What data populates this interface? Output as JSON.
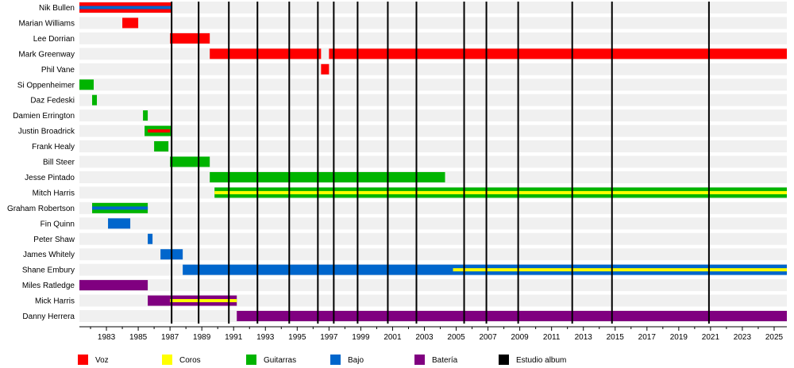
{
  "chart_data": {
    "type": "timeline",
    "title": "",
    "xlabel": "",
    "ylabel": "",
    "xlim": [
      1981.3,
      2025.8
    ],
    "x_ticks": [
      "1983",
      "1985",
      "1987",
      "1989",
      "1991",
      "1993",
      "1995",
      "1997",
      "1999",
      "2001",
      "2003",
      "2005",
      "2007",
      "2009",
      "2011",
      "2013",
      "2015",
      "2017",
      "2019",
      "2021",
      "2023",
      "2025"
    ],
    "grid": "none",
    "legend_position": "bottom",
    "roles": [
      {
        "key": "voz",
        "name": "Voz",
        "color": "#ff0000"
      },
      {
        "key": "coros",
        "name": "Coros",
        "color": "#ffff00"
      },
      {
        "key": "guitarras",
        "name": "Guitarras",
        "color": "#00b400"
      },
      {
        "key": "bajo",
        "name": "Bajo",
        "color": "#0066cc"
      },
      {
        "key": "bateria",
        "name": "Batería",
        "color": "#800080"
      },
      {
        "key": "estudio",
        "name": "Estudio album",
        "color": "#000000"
      }
    ],
    "albums": [
      1987.1,
      1988.8,
      1990.7,
      1992.5,
      1994.5,
      1996.3,
      1997.3,
      1998.8,
      2000.7,
      2002.5,
      2005.5,
      2006.9,
      2008.9,
      2012.3,
      2014.8,
      2020.9
    ],
    "members": [
      {
        "name": "Nik Bullen",
        "bars": [
          {
            "start": 1981.3,
            "end": 1987.1,
            "role": "voz"
          }
        ],
        "overlays": [
          {
            "start": 1981.3,
            "end": 1987.1,
            "role": "bajo"
          }
        ]
      },
      {
        "name": "Marian Williams",
        "bars": [
          {
            "start": 1984.0,
            "end": 1985.0,
            "role": "voz"
          }
        ]
      },
      {
        "name": "Lee Dorrian",
        "bars": [
          {
            "start": 1987.0,
            "end": 1989.5,
            "role": "voz"
          }
        ]
      },
      {
        "name": "Mark Greenway",
        "bars": [
          {
            "start": 1989.5,
            "end": 1996.5,
            "role": "voz"
          },
          {
            "start": 1997.0,
            "end": 2025.8,
            "role": "voz"
          }
        ]
      },
      {
        "name": "Phil Vane",
        "bars": [
          {
            "start": 1996.5,
            "end": 1997.0,
            "role": "voz"
          }
        ]
      },
      {
        "name": "Si Oppenheimer",
        "bars": [
          {
            "start": 1981.3,
            "end": 1982.2,
            "role": "guitarras"
          }
        ]
      },
      {
        "name": "Daz Fedeski",
        "bars": [
          {
            "start": 1982.1,
            "end": 1982.4,
            "role": "guitarras"
          }
        ]
      },
      {
        "name": "Damien Errington",
        "bars": [
          {
            "start": 1985.3,
            "end": 1985.6,
            "role": "guitarras"
          }
        ]
      },
      {
        "name": "Justin Broadrick",
        "bars": [
          {
            "start": 1985.4,
            "end": 1987.1,
            "role": "guitarras"
          }
        ],
        "overlays": [
          {
            "start": 1985.6,
            "end": 1987.0,
            "role": "voz"
          }
        ]
      },
      {
        "name": "Frank Healy",
        "bars": [
          {
            "start": 1986.0,
            "end": 1986.9,
            "role": "guitarras"
          }
        ]
      },
      {
        "name": "Bill Steer",
        "bars": [
          {
            "start": 1987.0,
            "end": 1989.5,
            "role": "guitarras"
          }
        ]
      },
      {
        "name": "Jesse Pintado",
        "bars": [
          {
            "start": 1989.5,
            "end": 2004.3,
            "role": "guitarras"
          }
        ]
      },
      {
        "name": "Mitch Harris",
        "bars": [
          {
            "start": 1989.8,
            "end": 2025.8,
            "role": "guitarras"
          }
        ],
        "overlays": [
          {
            "start": 1989.8,
            "end": 2025.8,
            "role": "coros"
          }
        ]
      },
      {
        "name": "Graham Robertson",
        "bars": [
          {
            "start": 1982.1,
            "end": 1985.6,
            "role": "guitarras"
          }
        ],
        "overlays": [
          {
            "start": 1982.1,
            "end": 1985.6,
            "role": "bajo"
          }
        ]
      },
      {
        "name": "Fin Quinn",
        "bars": [
          {
            "start": 1983.1,
            "end": 1984.5,
            "role": "bajo"
          }
        ]
      },
      {
        "name": "Peter Shaw",
        "bars": [
          {
            "start": 1985.6,
            "end": 1985.9,
            "role": "bajo"
          }
        ]
      },
      {
        "name": "James Whitely",
        "bars": [
          {
            "start": 1986.4,
            "end": 1987.8,
            "role": "bajo"
          }
        ]
      },
      {
        "name": "Shane Embury",
        "bars": [
          {
            "start": 1987.8,
            "end": 2025.8,
            "role": "bajo"
          }
        ],
        "overlays": [
          {
            "start": 2004.8,
            "end": 2025.8,
            "role": "coros"
          }
        ]
      },
      {
        "name": "Miles Ratledge",
        "bars": [
          {
            "start": 1981.3,
            "end": 1985.6,
            "role": "bateria"
          }
        ]
      },
      {
        "name": "Mick Harris",
        "bars": [
          {
            "start": 1985.6,
            "end": 1991.2,
            "role": "bateria"
          }
        ],
        "overlays": [
          {
            "start": 1987.0,
            "end": 1991.2,
            "role": "coros"
          }
        ]
      },
      {
        "name": "Danny Herrera",
        "bars": [
          {
            "start": 1991.2,
            "end": 2025.8,
            "role": "bateria"
          }
        ]
      }
    ]
  }
}
